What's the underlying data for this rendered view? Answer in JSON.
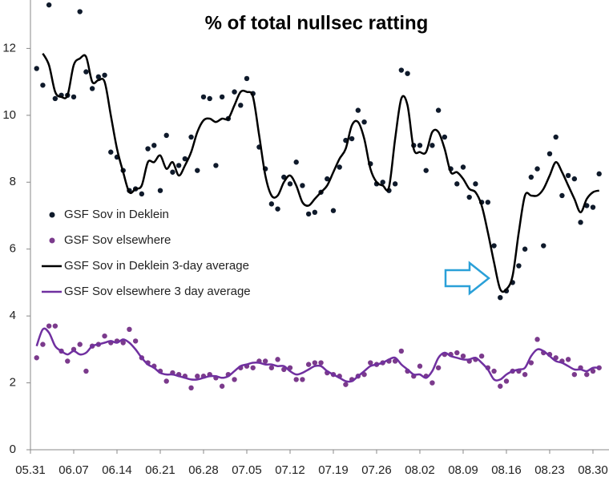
{
  "chart_data": {
    "type": "line",
    "title": "% of total nullsec ratting",
    "categories": [
      "05.31",
      null,
      null,
      null,
      null,
      null,
      null,
      "06.07",
      null,
      null,
      null,
      null,
      null,
      null,
      "06.14",
      null,
      null,
      null,
      null,
      null,
      null,
      "06.21",
      null,
      null,
      null,
      null,
      null,
      null,
      "06.28",
      null,
      null,
      null,
      null,
      null,
      null,
      "07.05",
      null,
      null,
      null,
      null,
      null,
      null,
      "07.12",
      null,
      null,
      null,
      null,
      null,
      null,
      "07.19",
      null,
      null,
      null,
      null,
      null,
      null,
      "07.26",
      null,
      null,
      null,
      null,
      null,
      null,
      "08.02",
      null,
      null,
      null,
      null,
      null,
      null,
      "08.09",
      null,
      null,
      null,
      null,
      null,
      null,
      "08.16",
      null,
      null,
      null,
      null,
      null,
      null,
      "08.23",
      null,
      null,
      null,
      null,
      null,
      null,
      "08.30",
      null
    ],
    "ylim": [
      0,
      13.4
    ],
    "yticks": [
      0,
      2,
      4,
      6,
      8,
      10,
      12
    ],
    "grid": false,
    "legend": "top-left",
    "series": [
      {
        "name": "GSF Sov in Deklein",
        "type": "scatter",
        "color": "#0f1a2b",
        "values": [
          null,
          11.4,
          10.9,
          13.3,
          10.5,
          10.6,
          10.6,
          10.55,
          13.1,
          11.3,
          10.8,
          11.15,
          11.2,
          8.9,
          8.75,
          8.35,
          7.75,
          7.8,
          7.65,
          9.0,
          9.1,
          7.75,
          9.4,
          8.3,
          8.5,
          8.7,
          9.35,
          8.35,
          10.55,
          10.5,
          8.5,
          10.55,
          9.9,
          10.7,
          10.3,
          11.1,
          10.65,
          9.05,
          8.4,
          7.35,
          7.2,
          8.15,
          7.95,
          8.6,
          7.9,
          7.05,
          7.1,
          7.7,
          8.1,
          7.15,
          8.45,
          9.25,
          9.3,
          10.15,
          9.8,
          8.55,
          7.95,
          8.0,
          7.75,
          7.95,
          11.35,
          11.25,
          9.1,
          9.1,
          8.35,
          9.1,
          10.15,
          9.35,
          8.4,
          7.95,
          8.45,
          7.55,
          7.95,
          7.4,
          7.4,
          6.1,
          4.55,
          4.75,
          5.0,
          5.5,
          6.0,
          8.15,
          8.4,
          6.1,
          8.85,
          9.35,
          7.6,
          8.2,
          8.1,
          6.8,
          7.3,
          7.25,
          8.25
        ]
      },
      {
        "name": "GSF Sov elsewhere",
        "type": "scatter",
        "color": "#7b3a8c",
        "values": [
          null,
          2.75,
          3.15,
          3.7,
          3.7,
          2.95,
          2.65,
          3.0,
          3.15,
          2.35,
          3.1,
          3.15,
          3.4,
          3.2,
          3.25,
          3.2,
          3.6,
          3.25,
          2.75,
          2.6,
          2.5,
          2.35,
          2.05,
          2.3,
          2.25,
          2.2,
          1.85,
          2.2,
          2.2,
          2.25,
          2.15,
          1.9,
          2.25,
          2.1,
          2.45,
          2.5,
          2.45,
          2.65,
          2.65,
          2.45,
          2.7,
          2.4,
          2.45,
          2.1,
          2.1,
          2.55,
          2.6,
          2.6,
          2.3,
          2.25,
          2.2,
          1.95,
          2.1,
          2.2,
          2.25,
          2.6,
          2.55,
          2.6,
          2.65,
          2.65,
          2.95,
          2.35,
          2.2,
          2.5,
          2.2,
          2.0,
          2.45,
          2.85,
          2.85,
          2.9,
          2.8,
          2.65,
          2.7,
          2.8,
          2.45,
          2.35,
          1.9,
          2.05,
          2.35,
          2.35,
          2.25,
          2.6,
          3.3,
          2.9,
          2.85,
          2.75,
          2.65,
          2.7,
          2.25,
          2.45,
          2.25,
          2.35,
          2.45
        ]
      },
      {
        "name": "GSF Sov in Deklein 3-day average",
        "type": "line",
        "color": "#000000",
        "values": [
          null,
          null,
          11.85,
          11.5,
          10.7,
          10.55,
          10.6,
          11.5,
          11.7,
          11.75,
          11.0,
          11.05,
          11.0,
          10.0,
          9.0,
          8.3,
          7.7,
          7.8,
          7.9,
          8.6,
          8.6,
          8.8,
          8.4,
          8.6,
          8.2,
          8.5,
          8.9,
          9.5,
          9.85,
          9.9,
          9.8,
          9.9,
          9.9,
          10.3,
          10.7,
          10.7,
          10.55,
          9.4,
          8.2,
          7.6,
          7.6,
          8.0,
          8.2,
          7.9,
          7.4,
          7.3,
          7.5,
          7.7,
          7.9,
          8.3,
          8.7,
          9.0,
          9.7,
          9.8,
          9.3,
          8.4,
          8.0,
          7.9,
          7.85,
          9.3,
          10.5,
          10.3,
          9.0,
          8.9,
          8.9,
          9.5,
          9.5,
          9.0,
          8.3,
          8.3,
          8.1,
          7.8,
          7.7,
          7.3,
          6.5,
          5.6,
          4.8,
          4.8,
          5.2,
          6.5,
          7.6,
          7.6,
          7.6,
          7.8,
          8.2,
          8.6,
          8.3,
          7.9,
          7.5,
          7.1,
          7.5,
          7.7,
          7.75
        ]
      },
      {
        "name": "GSF Sov elsewhere 3 day average",
        "type": "line",
        "color": "#7030a0",
        "values": [
          null,
          3.1,
          3.6,
          3.5,
          3.1,
          2.95,
          2.85,
          2.95,
          2.85,
          2.9,
          3.1,
          3.15,
          3.2,
          3.25,
          3.2,
          3.3,
          3.2,
          3.0,
          2.75,
          2.55,
          2.45,
          2.3,
          2.25,
          2.25,
          2.2,
          2.15,
          2.1,
          2.1,
          2.15,
          2.2,
          2.2,
          2.15,
          2.2,
          2.35,
          2.5,
          2.55,
          2.6,
          2.6,
          2.55,
          2.55,
          2.5,
          2.5,
          2.35,
          2.25,
          2.3,
          2.4,
          2.5,
          2.5,
          2.35,
          2.25,
          2.15,
          2.05,
          2.05,
          2.2,
          2.35,
          2.5,
          2.55,
          2.6,
          2.7,
          2.75,
          2.55,
          2.4,
          2.25,
          2.25,
          2.15,
          2.35,
          2.75,
          2.9,
          2.8,
          2.75,
          2.7,
          2.7,
          2.75,
          2.6,
          2.4,
          2.1,
          2.1,
          2.25,
          2.35,
          2.4,
          2.45,
          2.8,
          3.0,
          2.95,
          2.8,
          2.65,
          2.6,
          2.5,
          2.4,
          2.4,
          2.35,
          2.45,
          2.45
        ]
      }
    ]
  }
}
